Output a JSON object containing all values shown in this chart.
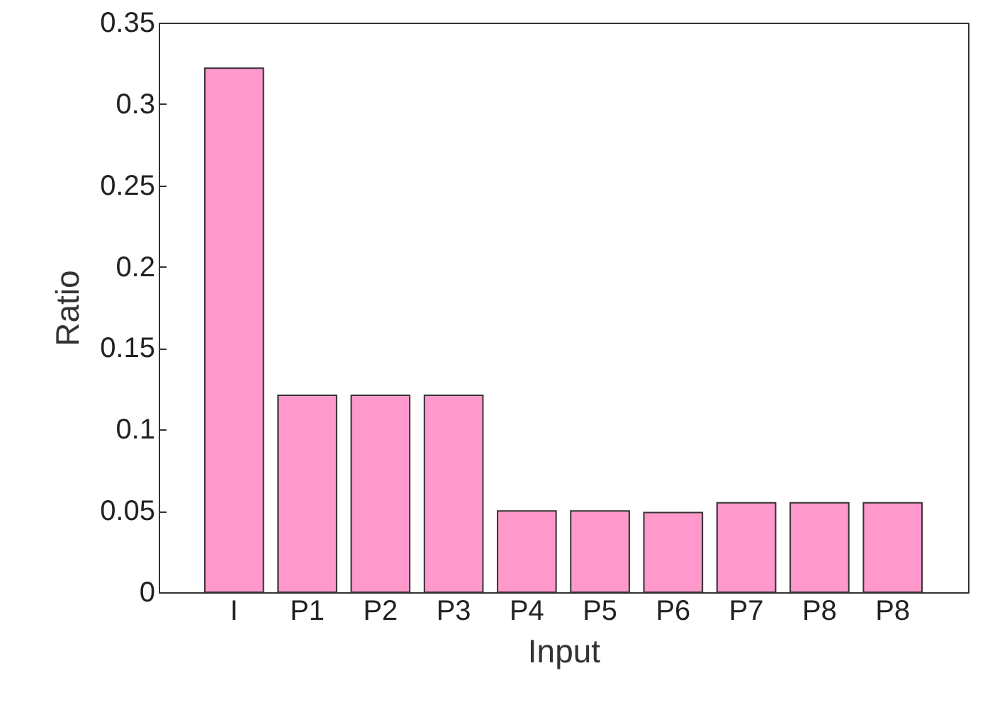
{
  "chart_data": {
    "type": "bar",
    "xlabel": "Input",
    "ylabel": "Ratio",
    "categories": [
      "I",
      "P1",
      "P2",
      "P3",
      "P4",
      "P5",
      "P6",
      "P7",
      "P8",
      "P8"
    ],
    "values": [
      0.322,
      0.121,
      0.121,
      0.121,
      0.05,
      0.05,
      0.049,
      0.055,
      0.055,
      0.055
    ],
    "color": "#ff99cc",
    "ylim": [
      0,
      0.35
    ],
    "yticks": [
      0,
      0.05,
      0.1,
      0.15,
      0.2,
      0.25,
      0.3,
      0.35
    ],
    "grid": false
  }
}
